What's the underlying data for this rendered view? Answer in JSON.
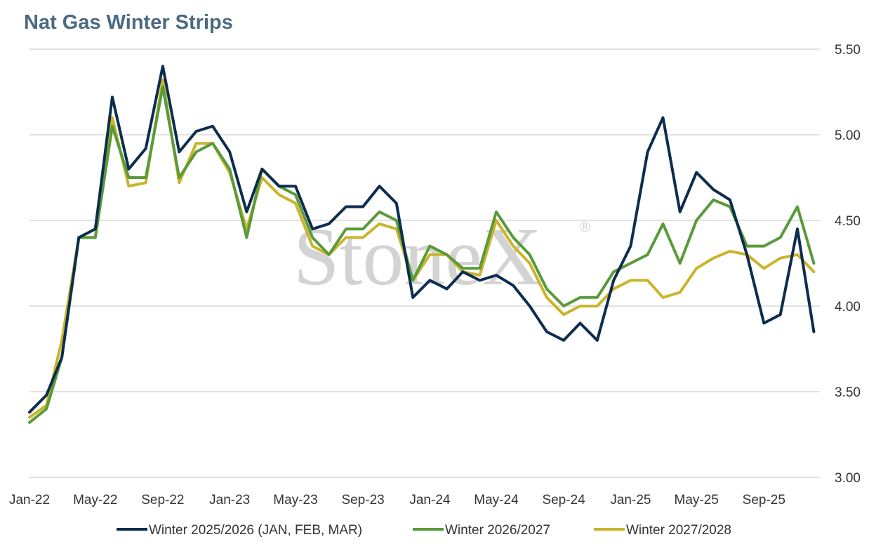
{
  "chart_data": {
    "type": "line",
    "title": "Nat Gas Winter Strips",
    "xlabel": "",
    "ylabel": "",
    "ylim": [
      3.0,
      5.5
    ],
    "y_ticks": [
      "3.00",
      "3.50",
      "4.00",
      "4.50",
      "5.00",
      "5.50"
    ],
    "y_axis_side": "right",
    "x_ticks": [
      "Jan-22",
      "May-22",
      "Sep-22",
      "Jan-23",
      "May-23",
      "Sep-23",
      "Jan-24",
      "May-24",
      "Sep-24",
      "Jan-25",
      "May-25",
      "Sep-25"
    ],
    "grid": "horizontal",
    "legend_position": "bottom",
    "watermark": "StoneX",
    "series": [
      {
        "name": "Winter 2025/2026 (JAN, FEB, MAR)",
        "color": "#0d2d4e",
        "x": [
          "2022-01-01",
          "2022-02-01",
          "2022-03-01",
          "2022-04-01",
          "2022-05-01",
          "2022-06-01",
          "2022-07-01",
          "2022-08-01",
          "2022-09-01",
          "2022-10-01",
          "2022-11-01",
          "2022-12-01",
          "2023-01-01",
          "2023-02-01",
          "2023-03-01",
          "2023-04-01",
          "2023-05-01",
          "2023-06-01",
          "2023-07-01",
          "2023-08-01",
          "2023-09-01",
          "2023-10-01",
          "2023-11-01",
          "2023-12-01",
          "2024-01-01",
          "2024-02-01",
          "2024-03-01",
          "2024-04-01",
          "2024-05-01",
          "2024-06-01",
          "2024-07-01",
          "2024-08-01",
          "2024-09-01",
          "2024-10-01",
          "2024-11-01",
          "2024-12-01",
          "2025-01-01",
          "2025-02-01",
          "2025-03-01",
          "2025-04-01",
          "2025-05-01",
          "2025-06-01",
          "2025-07-01",
          "2025-08-01",
          "2025-09-01",
          "2025-10-01",
          "2025-11-01",
          "2025-12-01"
        ],
        "values": [
          3.38,
          3.48,
          3.7,
          4.4,
          4.45,
          5.22,
          4.8,
          4.92,
          5.4,
          4.9,
          5.02,
          5.05,
          4.9,
          4.55,
          4.8,
          4.7,
          4.7,
          4.45,
          4.48,
          4.58,
          4.58,
          4.7,
          4.6,
          4.05,
          4.15,
          4.1,
          4.2,
          4.15,
          4.18,
          4.12,
          4.0,
          3.85,
          3.8,
          3.9,
          3.8,
          4.15,
          4.35,
          4.9,
          5.1,
          4.55,
          4.78,
          4.68,
          4.62,
          4.3,
          3.9,
          3.95,
          4.45,
          3.85
        ]
      },
      {
        "name": "Winter 2026/2027",
        "color": "#5a9a3a",
        "x": [
          "2022-01-01",
          "2022-02-01",
          "2022-03-01",
          "2022-04-01",
          "2022-05-01",
          "2022-06-01",
          "2022-07-01",
          "2022-08-01",
          "2022-09-01",
          "2022-10-01",
          "2022-11-01",
          "2022-12-01",
          "2023-01-01",
          "2023-02-01",
          "2023-03-01",
          "2023-04-01",
          "2023-05-01",
          "2023-06-01",
          "2023-07-01",
          "2023-08-01",
          "2023-09-01",
          "2023-10-01",
          "2023-11-01",
          "2023-12-01",
          "2024-01-01",
          "2024-02-01",
          "2024-03-01",
          "2024-04-01",
          "2024-05-01",
          "2024-06-01",
          "2024-07-01",
          "2024-08-01",
          "2024-09-01",
          "2024-10-01",
          "2024-11-01",
          "2024-12-01",
          "2025-01-01",
          "2025-02-01",
          "2025-03-01",
          "2025-04-01",
          "2025-05-01",
          "2025-06-01",
          "2025-07-01",
          "2025-08-01",
          "2025-09-01",
          "2025-10-01",
          "2025-11-01",
          "2025-12-01"
        ],
        "values": [
          3.32,
          3.4,
          3.7,
          4.4,
          4.4,
          5.05,
          4.75,
          4.75,
          5.28,
          4.75,
          4.9,
          4.95,
          4.8,
          4.4,
          4.8,
          4.7,
          4.65,
          4.4,
          4.3,
          4.45,
          4.45,
          4.55,
          4.5,
          4.15,
          4.35,
          4.3,
          4.22,
          4.22,
          4.55,
          4.4,
          4.3,
          4.1,
          4.0,
          4.05,
          4.05,
          4.2,
          4.25,
          4.3,
          4.48,
          4.25,
          4.5,
          4.62,
          4.58,
          4.35,
          4.35,
          4.4,
          4.58,
          4.25
        ]
      },
      {
        "name": "Winter 2027/2028",
        "color": "#c9b42c",
        "x": [
          "2022-01-01",
          "2022-02-01",
          "2022-03-01",
          "2022-04-01",
          "2022-05-01",
          "2022-06-01",
          "2022-07-01",
          "2022-08-01",
          "2022-09-01",
          "2022-10-01",
          "2022-11-01",
          "2022-12-01",
          "2023-01-01",
          "2023-02-01",
          "2023-03-01",
          "2023-04-01",
          "2023-05-01",
          "2023-06-01",
          "2023-07-01",
          "2023-08-01",
          "2023-09-01",
          "2023-10-01",
          "2023-11-01",
          "2023-12-01",
          "2024-01-01",
          "2024-02-01",
          "2024-03-01",
          "2024-04-01",
          "2024-05-01",
          "2024-06-01",
          "2024-07-01",
          "2024-08-01",
          "2024-09-01",
          "2024-10-01",
          "2024-11-01",
          "2024-12-01",
          "2025-01-01",
          "2025-02-01",
          "2025-03-01",
          "2025-04-01",
          "2025-05-01",
          "2025-06-01",
          "2025-07-01",
          "2025-08-01",
          "2025-09-01",
          "2025-10-01",
          "2025-11-01",
          "2025-12-01"
        ],
        "values": [
          3.35,
          3.42,
          3.8,
          4.4,
          4.4,
          5.1,
          4.7,
          4.72,
          5.32,
          4.72,
          4.95,
          4.95,
          4.78,
          4.45,
          4.75,
          4.65,
          4.6,
          4.35,
          4.3,
          4.4,
          4.4,
          4.48,
          4.45,
          4.15,
          4.3,
          4.3,
          4.2,
          4.18,
          4.5,
          4.35,
          4.25,
          4.05,
          3.95,
          4.0,
          4.0,
          4.1,
          4.15,
          4.15,
          4.05,
          4.08,
          4.22,
          4.28,
          4.32,
          4.3,
          4.22,
          4.28,
          4.3,
          4.2
        ]
      }
    ]
  }
}
